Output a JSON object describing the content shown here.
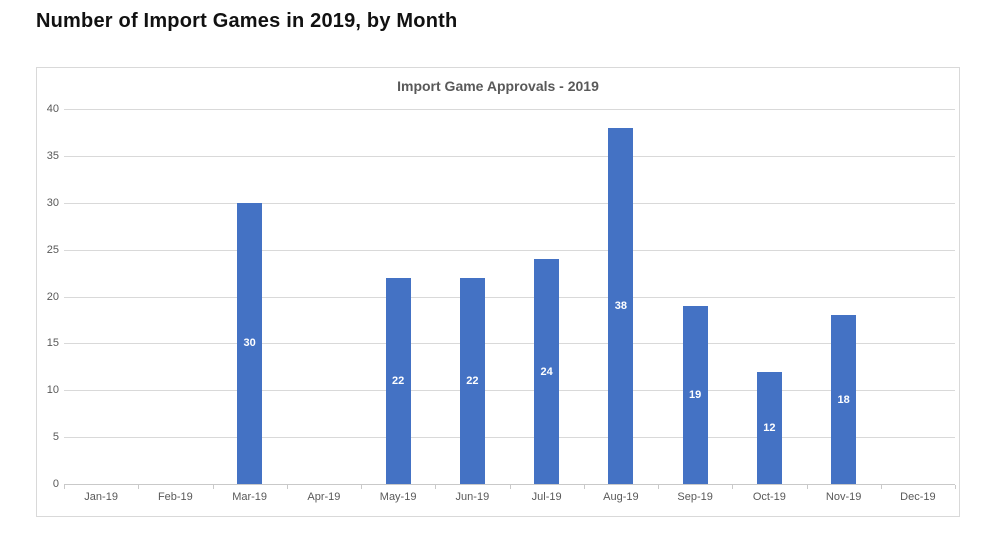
{
  "page": {
    "heading": "Number of Import Games in 2019, by Month"
  },
  "chart_data": {
    "type": "bar",
    "title": "Import Game Approvals - 2019",
    "categories": [
      "Jan-19",
      "Feb-19",
      "Mar-19",
      "Apr-19",
      "May-19",
      "Jun-19",
      "Jul-19",
      "Aug-19",
      "Sep-19",
      "Oct-19",
      "Nov-19",
      "Dec-19"
    ],
    "values": [
      0,
      0,
      30,
      0,
      22,
      22,
      24,
      38,
      19,
      12,
      18,
      0
    ],
    "xlabel": "",
    "ylabel": "",
    "ylim": [
      0,
      40
    ],
    "ytick_step": 5,
    "grid": true,
    "legend": false,
    "show_data_labels": true
  },
  "colors": {
    "bar": "#4472C4",
    "data_label": "#FFFFFF",
    "chart_title": "#595959",
    "axis_text": "#595959",
    "gridline": "#D9D9D9",
    "axis_line": "#C9C9C9",
    "frame_border": "#D9D9D9",
    "heading": "#111111",
    "background": "#FFFFFF"
  }
}
